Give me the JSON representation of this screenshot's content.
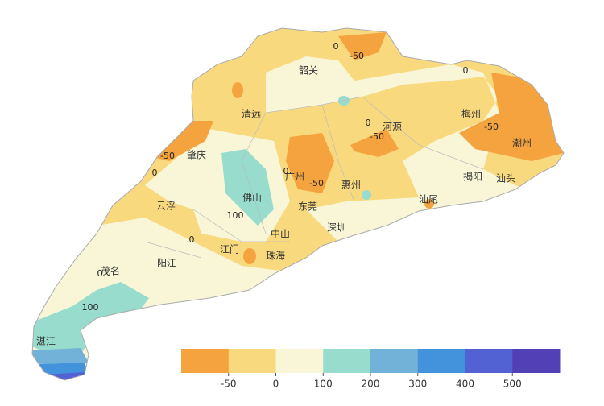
{
  "map": {
    "cities": [
      "韶关",
      "清远",
      "梅州",
      "河源",
      "潮州",
      "肇庆",
      "揭阳",
      "汕头",
      "广州",
      "惠州",
      "佛山",
      "东莞",
      "汕尾",
      "云浮",
      "深圳",
      "中山",
      "阳江",
      "江门",
      "珠海",
      "茂名",
      "湛江"
    ],
    "contour_labels": [
      "-50",
      "0",
      "0",
      "-50",
      "0",
      "-50",
      "-50",
      "0",
      "0",
      "-50",
      "100",
      "0",
      "0",
      "100"
    ]
  },
  "legend": {
    "colors": [
      "#f5a33e",
      "#f9d97e",
      "#f8f6d7",
      "#97dccd",
      "#72b2d8",
      "#4293dc",
      "#5262d2",
      "#5241b6"
    ],
    "ticks": [
      -50,
      0,
      100,
      200,
      300,
      400,
      500
    ]
  }
}
